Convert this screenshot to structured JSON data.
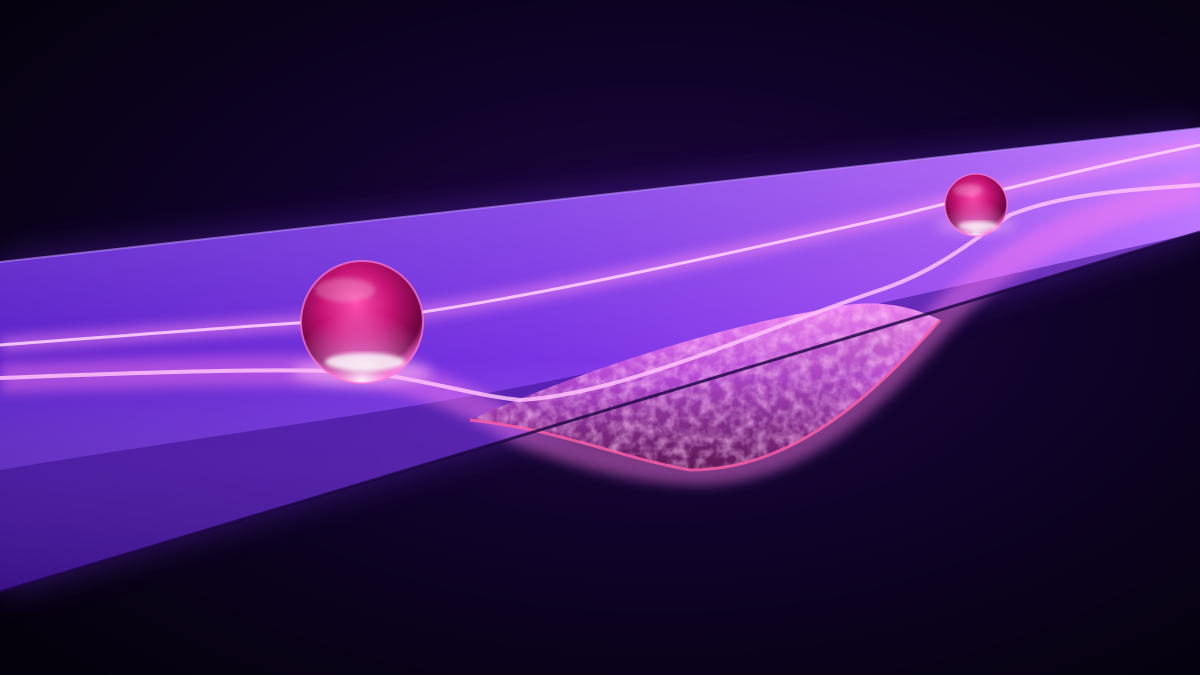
{
  "scene": {
    "background_color": "#07010f",
    "beam_color": "#6a2bd6",
    "glow_color": "#ff7cf0",
    "sphere_color": "#d0157a",
    "mesh_color": "#c86ad8",
    "sphere_count": 2
  }
}
